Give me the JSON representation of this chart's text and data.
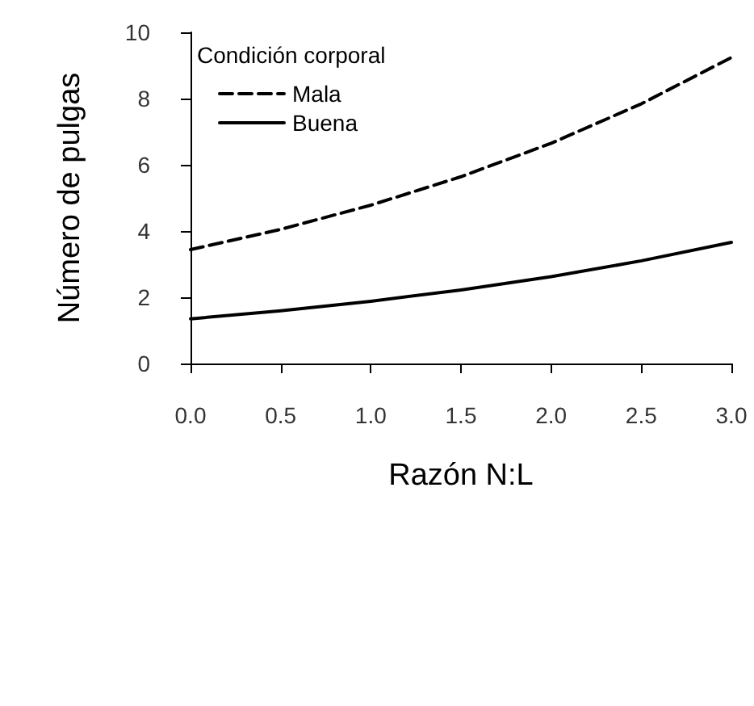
{
  "chart_data": {
    "type": "line",
    "xlabel": "Razón N:L",
    "ylabel": "Número de pulgas",
    "legend_title": "Condición corporal",
    "x": [
      0,
      0.5,
      1.0,
      1.5,
      2.0,
      2.5,
      3.0
    ],
    "series": [
      {
        "name": "Mala",
        "color": "#000000",
        "line_style": "dashed",
        "values": [
          3.44,
          4.05,
          4.78,
          5.64,
          6.65,
          7.84,
          9.24
        ]
      },
      {
        "name": "Buena",
        "color": "#000000",
        "line_style": "solid",
        "values": [
          1.35,
          1.59,
          1.88,
          2.22,
          2.62,
          3.1,
          3.66
        ]
      }
    ],
    "xlim": [
      0,
      3
    ],
    "xticks": [
      {
        "value": 0,
        "label": "0.0"
      },
      {
        "value": 0.5,
        "label": "0.5"
      },
      {
        "value": 1,
        "label": "1.0"
      },
      {
        "value": 1.5,
        "label": "1.5"
      },
      {
        "value": 2,
        "label": "2.0"
      },
      {
        "value": 2.5,
        "label": "2.5"
      },
      {
        "value": 3,
        "label": "3.0"
      }
    ],
    "ylim": [
      0,
      10
    ],
    "yticks": [
      0,
      2,
      4,
      6,
      8,
      10
    ],
    "grid": false,
    "legend": "top left",
    "marker": "none"
  }
}
